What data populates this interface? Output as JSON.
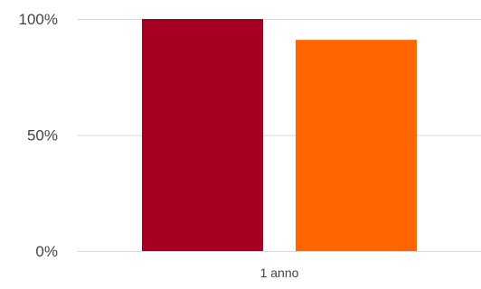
{
  "chart_data": {
    "type": "bar",
    "categories": [
      "1 anno"
    ],
    "series": [
      {
        "values": [
          100
        ],
        "color": "#a50021"
      },
      {
        "values": [
          91
        ],
        "color": "#ff6600"
      }
    ],
    "yticks": [
      {
        "value": 0,
        "label": "0%"
      },
      {
        "value": 50,
        "label": "50%"
      },
      {
        "value": 100,
        "label": "100%"
      }
    ],
    "ylim": [
      0,
      100
    ],
    "grid": true,
    "legend": "none",
    "title": "",
    "xlabel": "",
    "ylabel": ""
  }
}
